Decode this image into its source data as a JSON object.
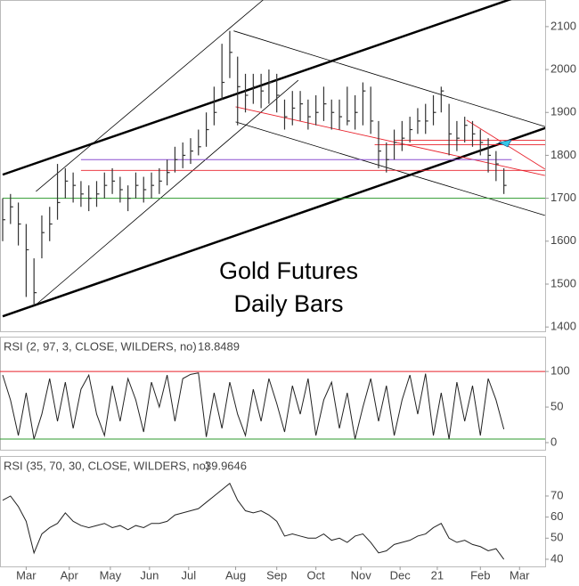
{
  "chart_data": [
    {
      "type": "hlc",
      "annotation": [
        "Gold Futures",
        "Daily Bars"
      ],
      "x": [
        0,
        4,
        8,
        12,
        16,
        20,
        24,
        28,
        32,
        36,
        40,
        44,
        48,
        52,
        56,
        60,
        64,
        68,
        72,
        76,
        80,
        84,
        88,
        92,
        96,
        100,
        104,
        108,
        112,
        116,
        120,
        124,
        128,
        132,
        136,
        140,
        144,
        148,
        152,
        156,
        160,
        164,
        168,
        172,
        176,
        180,
        184,
        188,
        192,
        196,
        200,
        204,
        208,
        212,
        216,
        220,
        224,
        228,
        232,
        236,
        240,
        244,
        248,
        252,
        256
      ],
      "high": [
        1700,
        1710,
        1690,
        1640,
        1560,
        1660,
        1680,
        1780,
        1770,
        1760,
        1740,
        1730,
        1740,
        1760,
        1770,
        1750,
        1730,
        1760,
        1750,
        1760,
        1770,
        1790,
        1820,
        1830,
        1840,
        1860,
        1900,
        1960,
        2060,
        2090,
        2030,
        1990,
        1990,
        1990,
        2000,
        1990,
        1930,
        1950,
        1950,
        1930,
        1940,
        1960,
        1930,
        1930,
        1960,
        1940,
        1970,
        1960,
        1880,
        1830,
        1860,
        1880,
        1890,
        1910,
        1920,
        1940,
        1960,
        1920,
        1880,
        1890,
        1880,
        1860,
        1840,
        1810,
        1770
      ],
      "low": [
        1600,
        1640,
        1590,
        1470,
        1450,
        1560,
        1600,
        1650,
        1700,
        1690,
        1680,
        1670,
        1680,
        1700,
        1710,
        1690,
        1670,
        1700,
        1690,
        1700,
        1710,
        1730,
        1760,
        1770,
        1780,
        1800,
        1820,
        1870,
        1930,
        1980,
        1870,
        1900,
        1920,
        1910,
        1920,
        1900,
        1860,
        1870,
        1880,
        1860,
        1870,
        1880,
        1860,
        1860,
        1870,
        1860,
        1870,
        1850,
        1770,
        1760,
        1790,
        1810,
        1830,
        1850,
        1850,
        1870,
        1900,
        1800,
        1810,
        1830,
        1820,
        1800,
        1760,
        1740,
        1710
      ],
      "close": [
        1650,
        1680,
        1640,
        1580,
        1480,
        1620,
        1640,
        1690,
        1740,
        1730,
        1710,
        1700,
        1710,
        1730,
        1740,
        1720,
        1700,
        1730,
        1720,
        1730,
        1740,
        1760,
        1790,
        1800,
        1810,
        1820,
        1860,
        1900,
        1970,
        2040,
        1960,
        1940,
        1960,
        1950,
        1970,
        1940,
        1890,
        1910,
        1920,
        1890,
        1900,
        1920,
        1900,
        1890,
        1880,
        1900,
        1950,
        1880,
        1810,
        1790,
        1830,
        1840,
        1860,
        1880,
        1880,
        1900,
        1950,
        1850,
        1840,
        1870,
        1850,
        1830,
        1800,
        1780,
        1730
      ],
      "color": "#333333",
      "xlim": [
        0,
        278
      ],
      "ylim": [
        1390,
        2162
      ],
      "yticks": [
        1400,
        1500,
        1600,
        1700,
        1800,
        1900,
        2000,
        2100
      ],
      "lines": [
        {
          "color": "#000000",
          "width": 2.5,
          "x": [
            0,
            278
          ],
          "y": [
            1755,
            2193
          ]
        },
        {
          "color": "#000000",
          "width": 2.5,
          "x": [
            0,
            278
          ],
          "y": [
            1425,
            1865
          ]
        },
        {
          "color": "#000000",
          "width": 0.8,
          "x": [
            17,
            133
          ],
          "y": [
            1716,
            2162
          ]
        },
        {
          "color": "#000000",
          "width": 0.8,
          "x": [
            17,
            151
          ],
          "y": [
            1452,
            1975
          ]
        },
        {
          "color": "#000000",
          "width": 0.8,
          "x": [
            118,
            277
          ],
          "y": [
            2090,
            1867
          ]
        },
        {
          "color": "#000000",
          "width": 0.8,
          "x": [
            119,
            277
          ],
          "y": [
            1878,
            1660
          ]
        },
        {
          "color": "#e8202a",
          "width": 0.9,
          "x": [
            119,
            277
          ],
          "y": [
            1913,
            1753
          ]
        },
        {
          "color": "#e8202a",
          "width": 0.9,
          "x": [
            237,
            277
          ],
          "y": [
            1882,
            1768
          ]
        },
        {
          "color": "#e8202a",
          "width": 0.9,
          "x": [
            40,
            278
          ],
          "y": [
            1765,
            1765
          ]
        },
        {
          "color": "#8a4fd0",
          "width": 0.9,
          "x": [
            40,
            260
          ],
          "y": [
            1790,
            1790
          ]
        },
        {
          "color": "#e8202a",
          "width": 0.9,
          "x": [
            200,
            278
          ],
          "y": [
            1835,
            1835
          ]
        },
        {
          "color": "#e8202a",
          "width": 0.9,
          "x": [
            190,
            278
          ],
          "y": [
            1825,
            1825
          ]
        },
        {
          "color": "#2e9a2e",
          "width": 0.9,
          "x": [
            0,
            278
          ],
          "y": [
            1700,
            1700
          ]
        }
      ]
    },
    {
      "type": "line",
      "title": "RSI (2, 97, 3, CLOSE, WILDERS, no)",
      "last_value": "18.8489",
      "x": [
        0,
        4,
        8,
        12,
        16,
        20,
        24,
        28,
        32,
        36,
        40,
        44,
        48,
        52,
        56,
        60,
        64,
        68,
        72,
        76,
        80,
        84,
        88,
        92,
        96,
        100,
        104,
        108,
        112,
        116,
        120,
        124,
        128,
        132,
        136,
        140,
        144,
        148,
        152,
        156,
        160,
        164,
        168,
        172,
        176,
        180,
        184,
        188,
        192,
        196,
        200,
        204,
        208,
        212,
        216,
        220,
        224,
        228,
        232,
        236,
        240,
        244,
        248,
        252,
        256
      ],
      "values": [
        95,
        60,
        10,
        70,
        5,
        40,
        90,
        30,
        85,
        20,
        75,
        95,
        40,
        10,
        80,
        30,
        90,
        60,
        15,
        85,
        50,
        95,
        30,
        90,
        96,
        98,
        8,
        70,
        20,
        85,
        40,
        10,
        75,
        30,
        90,
        55,
        15,
        80,
        40,
        90,
        10,
        60,
        85,
        20,
        70,
        5,
        50,
        90,
        30,
        80,
        10,
        60,
        95,
        40,
        97,
        10,
        70,
        5,
        85,
        30,
        80,
        10,
        90,
        60,
        18.85
      ],
      "color": "#222222",
      "xlim": [
        0,
        278
      ],
      "ylim": [
        -10,
        149
      ],
      "yticks": [
        0,
        50,
        100
      ],
      "levels": [
        {
          "value": 100,
          "color": "#e8202a"
        },
        {
          "value": 5,
          "color": "#2e9a2e"
        }
      ]
    },
    {
      "type": "line",
      "title": "RSI (35, 70, 30, CLOSE, WILDERS, no)",
      "last_value": "39.9646",
      "x": [
        0,
        4,
        8,
        12,
        16,
        20,
        24,
        28,
        32,
        36,
        40,
        44,
        48,
        52,
        56,
        60,
        64,
        68,
        72,
        76,
        80,
        84,
        88,
        92,
        96,
        100,
        104,
        108,
        112,
        116,
        120,
        124,
        128,
        132,
        136,
        140,
        144,
        148,
        152,
        156,
        160,
        164,
        168,
        172,
        176,
        180,
        184,
        188,
        192,
        196,
        200,
        204,
        208,
        212,
        216,
        220,
        224,
        228,
        232,
        236,
        240,
        244,
        248,
        252,
        256
      ],
      "values": [
        68,
        70,
        65,
        58,
        43,
        52,
        55,
        57,
        62,
        58,
        56,
        55,
        56,
        57,
        55,
        56,
        54,
        56,
        55,
        57,
        57,
        58,
        61,
        62,
        63,
        64,
        67,
        70,
        73,
        76,
        68,
        63,
        62,
        63,
        61,
        58,
        51,
        52,
        51,
        50,
        50,
        52,
        49,
        50,
        48,
        51,
        52,
        48,
        43,
        44,
        47,
        48,
        49,
        51,
        52,
        55,
        57,
        50,
        48,
        49,
        47,
        46,
        44,
        45,
        39.96
      ],
      "color": "#222222",
      "xlim": [
        0,
        278
      ],
      "ylim": [
        36.6,
        89
      ],
      "yticks": [
        40,
        50,
        60,
        70
      ],
      "xticks": [
        {
          "value": 12,
          "label": "Mar"
        },
        {
          "value": 34,
          "label": "Apr"
        },
        {
          "value": 55,
          "label": "May"
        },
        {
          "value": 75,
          "label": "Jun"
        },
        {
          "value": 95,
          "label": "Jul"
        },
        {
          "value": 119,
          "label": "Aug"
        },
        {
          "value": 140,
          "label": "Sep"
        },
        {
          "value": 160,
          "label": "Oct"
        },
        {
          "value": 183,
          "label": "Nov"
        },
        {
          "value": 203,
          "label": "Dec"
        },
        {
          "value": 222,
          "label": "21"
        },
        {
          "value": 244,
          "label": "Feb"
        },
        {
          "value": 264,
          "label": "Mar"
        }
      ]
    }
  ]
}
